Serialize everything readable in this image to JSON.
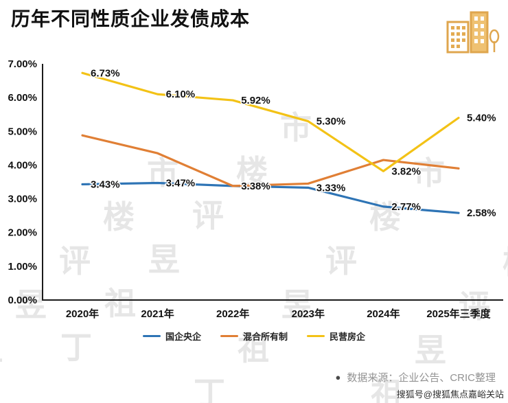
{
  "header": {
    "title": "历年不同性质企业发债成本",
    "logo_icon": "buildings-icon"
  },
  "chart_data": {
    "type": "line",
    "title": "历年不同性质企业发债成本",
    "categories": [
      "2020年",
      "2021年",
      "2022年",
      "2023年",
      "2024年",
      "2025年三季度"
    ],
    "series": [
      {
        "name": "国企央企",
        "color": "#2e74b5",
        "values": [
          3.43,
          3.47,
          3.38,
          3.33,
          2.77,
          2.58
        ],
        "labels": [
          "3.43%",
          "3.47%",
          "3.38%",
          "3.33%",
          "2.77%",
          "2.58%"
        ],
        "show_labels": true
      },
      {
        "name": "混合所有制",
        "color": "#e07f35",
        "values": [
          4.88,
          4.35,
          3.38,
          3.45,
          4.15,
          3.9
        ],
        "labels": [],
        "show_labels": false
      },
      {
        "name": "民营房企",
        "color": "#f3c216",
        "values": [
          6.73,
          6.1,
          5.92,
          5.3,
          3.82,
          5.4
        ],
        "labels": [
          "6.73%",
          "6.10%",
          "5.92%",
          "5.30%",
          "3.82%",
          "5.40%"
        ],
        "show_labels": true
      }
    ],
    "ylim": [
      0,
      7
    ],
    "ytick_step": 1,
    "ytick_labels": [
      "0.00%",
      "1.00%",
      "2.00%",
      "3.00%",
      "4.00%",
      "5.00%",
      "6.00%",
      "7.00%"
    ],
    "grid": false,
    "legend_position": "bottom",
    "xlabel": "",
    "ylabel": ""
  },
  "footer": {
    "source_bullet": "●",
    "source": "数据来源：企业公告、CRIC整理",
    "watermark": "搜狐号@搜狐焦点嘉峪关站"
  },
  "watermark": {
    "text": "丁祖昱评楼市"
  }
}
